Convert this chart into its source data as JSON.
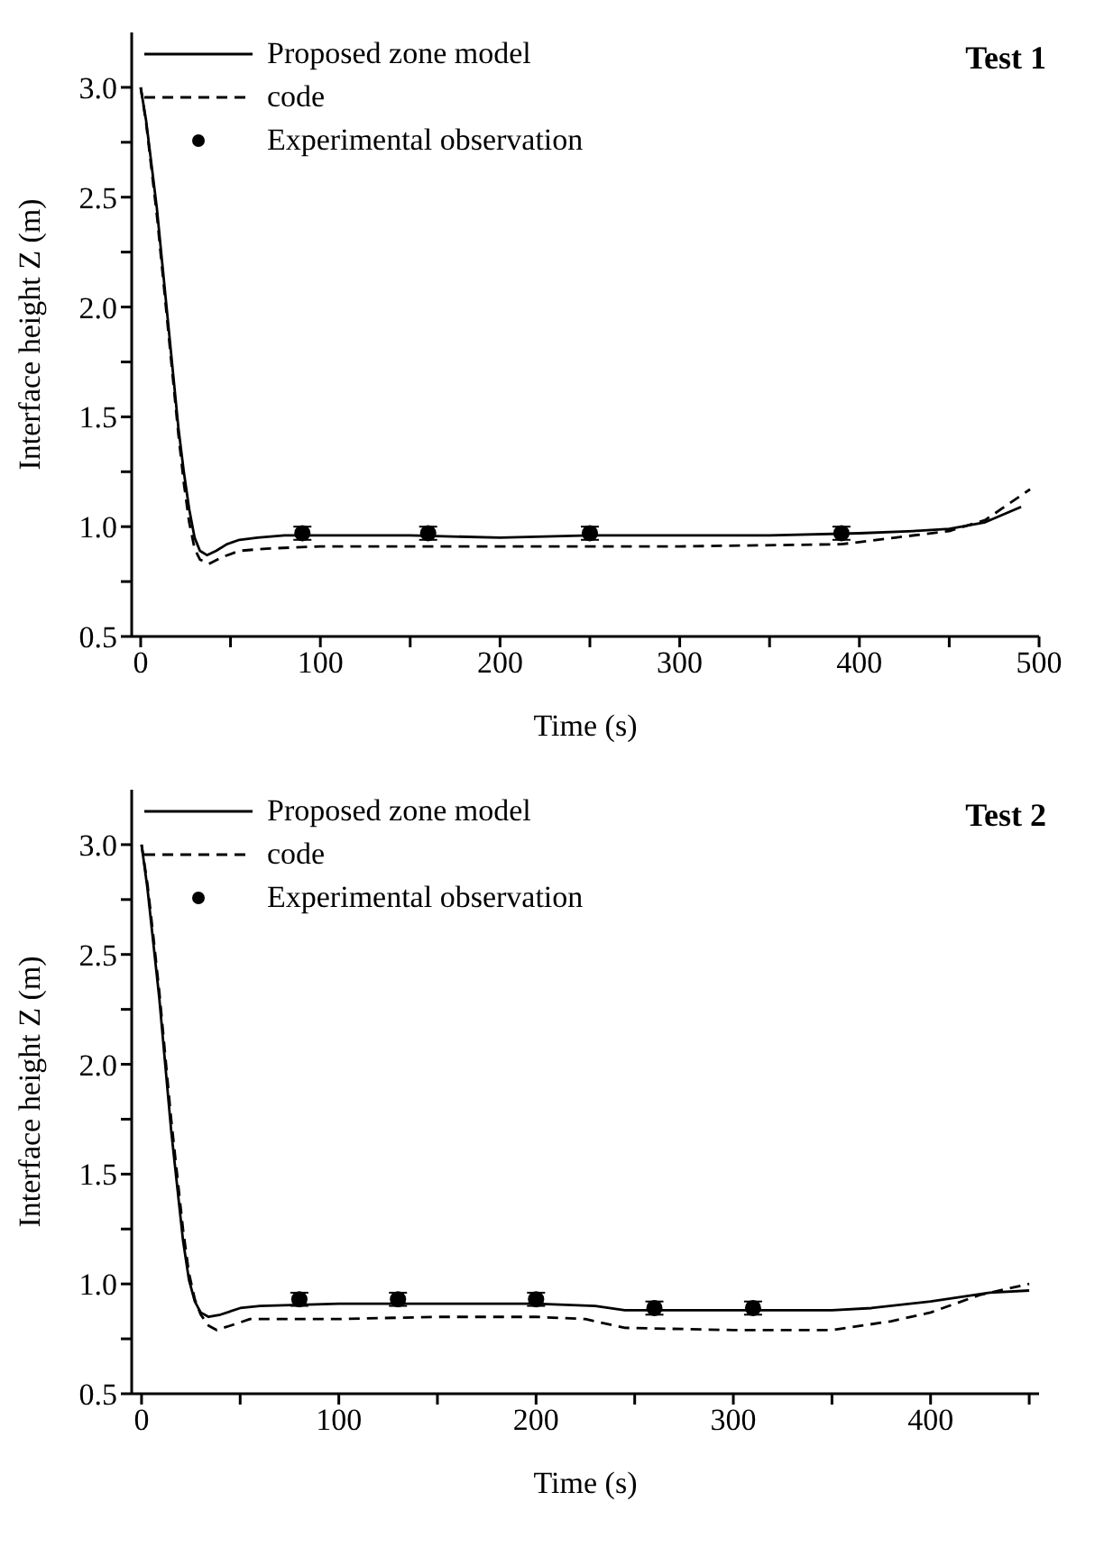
{
  "chart_data": [
    {
      "type": "line",
      "xlabel": "Time (s)",
      "ylabel": "Interface height Z (m)",
      "annotations": [
        "Test 1"
      ],
      "legend": "top left",
      "grid": false,
      "xlim": [
        -5,
        500
      ],
      "xticks": [
        0,
        {
          "value": 50,
          "label": null
        },
        100,
        {
          "value": 150,
          "label": null
        },
        200,
        {
          "value": 250,
          "label": null
        },
        300,
        {
          "value": 350,
          "label": null
        },
        400,
        {
          "value": 450,
          "label": null
        },
        500
      ],
      "ylim": [
        0.5,
        3.25
      ],
      "yticks": [
        0.5,
        {
          "value": 0.75,
          "label": null
        },
        {
          "value": 1,
          "label": "1.0"
        },
        {
          "value": 1.25,
          "label": null
        },
        1.5,
        {
          "value": 1.75,
          "label": null
        },
        {
          "value": 2,
          "label": "2.0"
        },
        {
          "value": 2.25,
          "label": null
        },
        2.5,
        {
          "value": 2.75,
          "label": null
        },
        {
          "value": 3,
          "label": "3.0"
        }
      ],
      "series": [
        {
          "name": "Proposed zone model",
          "color": "#000000",
          "line_style": "solid",
          "marker": "none",
          "x": [
            0,
            3,
            6,
            9,
            12,
            15,
            18,
            21,
            24,
            27,
            30,
            33,
            37,
            42,
            48,
            55,
            65,
            80,
            100,
            150,
            200,
            250,
            300,
            350,
            400,
            430,
            450,
            470,
            490
          ],
          "values": [
            3.0,
            2.85,
            2.65,
            2.45,
            2.2,
            1.95,
            1.7,
            1.45,
            1.25,
            1.08,
            0.95,
            0.89,
            0.87,
            0.89,
            0.92,
            0.94,
            0.95,
            0.96,
            0.96,
            0.96,
            0.95,
            0.96,
            0.96,
            0.96,
            0.97,
            0.98,
            0.99,
            1.02,
            1.09
          ]
        },
        {
          "name": "code",
          "color": "#000000",
          "line_style": "dashed",
          "marker": "none",
          "x": [
            0,
            3,
            6,
            9,
            12,
            15,
            18,
            21,
            24,
            27,
            30,
            33,
            38,
            45,
            55,
            70,
            100,
            200,
            300,
            390,
            420,
            450,
            470,
            495
          ],
          "values": [
            3.0,
            2.84,
            2.63,
            2.42,
            2.17,
            1.92,
            1.67,
            1.42,
            1.2,
            1.02,
            0.9,
            0.85,
            0.83,
            0.86,
            0.89,
            0.9,
            0.91,
            0.91,
            0.91,
            0.92,
            0.95,
            0.98,
            1.03,
            1.17
          ]
        },
        {
          "name": "Experimental observation",
          "type": "scatter",
          "color": "#000000",
          "marker": "circle",
          "x": [
            90,
            160,
            250,
            390
          ],
          "values": [
            0.97,
            0.97,
            0.97,
            0.97
          ],
          "errors": [
            0.03,
            0.03,
            0.03,
            0.03
          ]
        }
      ]
    },
    {
      "type": "line",
      "xlabel": "Time (s)",
      "ylabel": "Interface height Z (m)",
      "annotations": [
        "Test 2"
      ],
      "legend": "top left",
      "grid": false,
      "xlim": [
        -5,
        455
      ],
      "xticks": [
        0,
        {
          "value": 50,
          "label": null
        },
        100,
        {
          "value": 150,
          "label": null
        },
        200,
        {
          "value": 250,
          "label": null
        },
        300,
        {
          "value": 350,
          "label": null
        },
        400,
        {
          "value": 450,
          "label": null
        }
      ],
      "ylim": [
        0.5,
        3.25
      ],
      "yticks": [
        0.5,
        {
          "value": 0.75,
          "label": null
        },
        {
          "value": 1,
          "label": "1.0"
        },
        {
          "value": 1.25,
          "label": null
        },
        1.5,
        {
          "value": 1.75,
          "label": null
        },
        {
          "value": 2,
          "label": "2.0"
        },
        {
          "value": 2.25,
          "label": null
        },
        2.5,
        {
          "value": 2.75,
          "label": null
        },
        {
          "value": 3,
          "label": "3.0"
        }
      ],
      "series": [
        {
          "name": "Proposed zone model",
          "color": "#000000",
          "line_style": "solid",
          "marker": "none",
          "x": [
            0,
            3,
            6,
            9,
            12,
            15,
            18,
            21,
            24,
            27,
            30,
            34,
            40,
            50,
            60,
            100,
            150,
            200,
            230,
            245,
            300,
            350,
            370,
            400,
            430,
            450
          ],
          "values": [
            3.0,
            2.8,
            2.55,
            2.3,
            2.0,
            1.7,
            1.45,
            1.2,
            1.02,
            0.92,
            0.87,
            0.85,
            0.86,
            0.89,
            0.9,
            0.91,
            0.91,
            0.91,
            0.9,
            0.88,
            0.88,
            0.88,
            0.89,
            0.92,
            0.96,
            0.97
          ]
        },
        {
          "name": "code",
          "color": "#000000",
          "line_style": "dashed",
          "marker": "none",
          "x": [
            0,
            3,
            6,
            9,
            12,
            15,
            18,
            21,
            24,
            27,
            30,
            34,
            38,
            45,
            55,
            100,
            150,
            200,
            225,
            245,
            300,
            350,
            380,
            400,
            425,
            450
          ],
          "values": [
            3.0,
            2.82,
            2.58,
            2.33,
            2.04,
            1.75,
            1.5,
            1.25,
            1.05,
            0.93,
            0.86,
            0.81,
            0.79,
            0.81,
            0.84,
            0.84,
            0.85,
            0.85,
            0.84,
            0.8,
            0.79,
            0.79,
            0.83,
            0.87,
            0.95,
            1.0
          ]
        },
        {
          "name": "Experimental observation",
          "type": "scatter",
          "color": "#000000",
          "marker": "circle",
          "x": [
            80,
            130,
            200,
            260,
            310
          ],
          "values": [
            0.93,
            0.93,
            0.93,
            0.89,
            0.89
          ],
          "errors": [
            0.03,
            0.03,
            0.03,
            0.03,
            0.03
          ]
        }
      ]
    }
  ]
}
